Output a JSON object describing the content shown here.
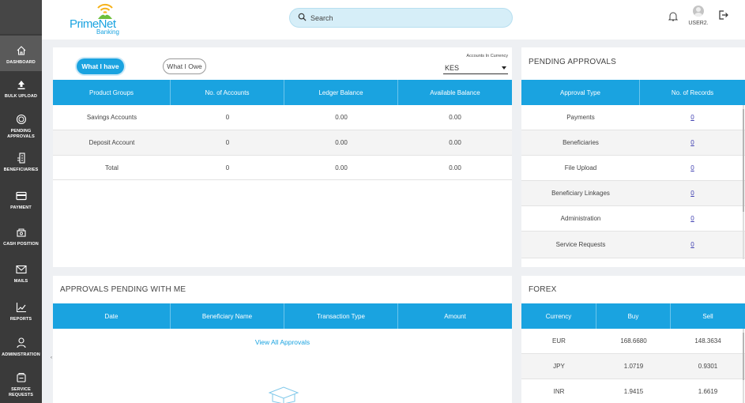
{
  "sidebar": {
    "items": [
      {
        "label": "DASHBOARD",
        "icon": "home-icon"
      },
      {
        "label": "BULK UPLOAD",
        "icon": "upload-icon"
      },
      {
        "label": "PENDING APPROVALS",
        "icon": "pending-icon"
      },
      {
        "label": "BENEFICIARIES",
        "icon": "beneficiaries-icon"
      },
      {
        "label": "PAYMENT",
        "icon": "payment-card-icon"
      },
      {
        "label": "CASH POSITION",
        "icon": "cash-position-icon"
      },
      {
        "label": "MAILS",
        "icon": "mail-icon"
      },
      {
        "label": "REPORTS",
        "icon": "reports-chart-icon"
      },
      {
        "label": "ADMINISTRATION",
        "icon": "administration-user-icon"
      },
      {
        "label": "SERVICE REQUESTS",
        "icon": "service-requests-icon"
      }
    ]
  },
  "header": {
    "logo_brand": "PrimeNet",
    "logo_sub": "Banking",
    "search_placeholder": "Search",
    "user_name": "USER2."
  },
  "have_panel": {
    "toggle_have": "What I have",
    "toggle_owe": "What I Owe",
    "currency_label": "Accounts In Currency",
    "currency_value": "KES",
    "columns": [
      "Product Groups",
      "No. of Accounts",
      "Ledger Balance",
      "Available Balance"
    ],
    "rows": [
      [
        "Savings Accounts",
        "0",
        "0.00",
        "0.00"
      ],
      [
        "Deposit Account",
        "0",
        "0.00",
        "0.00"
      ],
      [
        "Total",
        "0",
        "0.00",
        "0.00"
      ]
    ]
  },
  "pending_panel": {
    "title": "PENDING APPROVALS",
    "columns": [
      "Approval Type",
      "No. of Records"
    ],
    "rows": [
      [
        "Payments",
        "0"
      ],
      [
        "Beneficiaries",
        "0"
      ],
      [
        "File Upload",
        "0"
      ],
      [
        "Beneficiary Linkages",
        "0"
      ],
      [
        "Administration",
        "0"
      ],
      [
        "Service Requests",
        "0"
      ]
    ]
  },
  "approvals_panel": {
    "title": "APPROVALS PENDING WITH ME",
    "columns": [
      "Date",
      "Beneficiary Name",
      "Transaction Type",
      "Amount"
    ],
    "view_all": "View All Approvals"
  },
  "forex_panel": {
    "title": "FOREX",
    "columns": [
      "Currency",
      "Buy",
      "Sell"
    ],
    "rows": [
      [
        "EUR",
        "168.6680",
        "148.3634"
      ],
      [
        "JPY",
        "1.0719",
        "0.9301"
      ],
      [
        "INR",
        "1.9415",
        "1.6619"
      ]
    ]
  },
  "colors": {
    "accent": "#1aa3e0",
    "sidebar": "#3a3a3a",
    "link": "#3d3db0"
  }
}
